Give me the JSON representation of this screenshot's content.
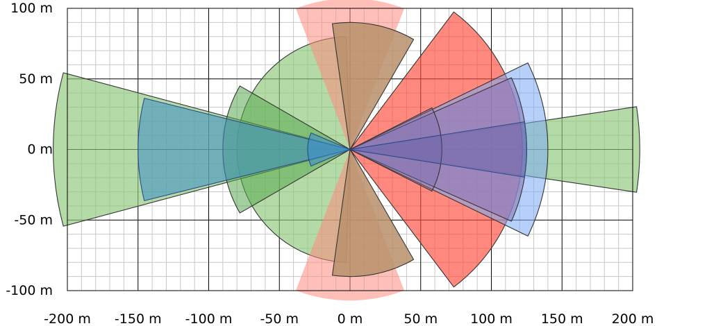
{
  "chart_data": {
    "type": "sector_coverage",
    "title": "",
    "xlabel": "",
    "ylabel": "",
    "unit": "m",
    "xlim": [
      -200,
      200
    ],
    "ylim": [
      -100,
      100
    ],
    "x_ticks": [
      -200,
      -150,
      -100,
      -50,
      0,
      50,
      100,
      150,
      200
    ],
    "y_ticks": [
      -100,
      -50,
      0,
      50,
      100
    ],
    "x_tick_labels": [
      "-200 m",
      "-150 m",
      "-100 m",
      "-50 m",
      "0 m",
      "50 m",
      "100 m",
      "150 m",
      "200 m"
    ],
    "y_tick_labels": [
      "-100 m",
      "-50 m",
      "0 m",
      "50 m",
      "100 m"
    ],
    "major_grid_step": 50,
    "minor_grid_step": 10,
    "grid": true,
    "legend": "none",
    "sectors": [
      {
        "group": "green",
        "range": 80,
        "start_deg": 92,
        "end_deg": 268,
        "fill": "#8cc878",
        "fill_opacity": 0.65,
        "stroke": "#333333"
      },
      {
        "group": "green",
        "range": 210,
        "start_deg": 165,
        "end_deg": 195,
        "fill": "#8cc878",
        "fill_opacity": 0.65,
        "stroke": "#333333"
      },
      {
        "group": "green",
        "range": 90,
        "start_deg": 150,
        "end_deg": 210,
        "fill": "#5aaa50",
        "fill_opacity": 0.55,
        "stroke": "#333333"
      },
      {
        "group": "blue",
        "range": 150,
        "start_deg": 166,
        "end_deg": 194,
        "fill": "#3c8cc8",
        "fill_opacity": 0.55,
        "stroke": "#2a4a88"
      },
      {
        "group": "blue",
        "range": 30,
        "start_deg": 157,
        "end_deg": 203,
        "fill": "#3c8cc8",
        "fill_opacity": 0.6,
        "stroke": "#2a4a88"
      },
      {
        "group": "green",
        "range": 205,
        "start_deg": -8.5,
        "end_deg": 8.5,
        "fill": "#8cc878",
        "fill_opacity": 0.65,
        "stroke": "#333333"
      },
      {
        "group": "red",
        "range": 122,
        "start_deg": -53,
        "end_deg": 53,
        "fill": "#ff4a3a",
        "fill_opacity": 0.65,
        "stroke": "#333333"
      },
      {
        "group": "red",
        "range": 107,
        "start_deg": 69,
        "end_deg": 111,
        "fill": "#ff8a80",
        "fill_opacity": 0.55,
        "stroke": "none"
      },
      {
        "group": "red",
        "range": 107,
        "start_deg": -111,
        "end_deg": -69,
        "fill": "#ff8a80",
        "fill_opacity": 0.55,
        "stroke": "none"
      },
      {
        "group": "brown",
        "range": 90,
        "start_deg": 60,
        "end_deg": 98,
        "fill": "#b8906a",
        "fill_opacity": 0.85,
        "stroke": "#333333"
      },
      {
        "group": "brown",
        "range": 90,
        "start_deg": -98,
        "end_deg": -60,
        "fill": "#b8906a",
        "fill_opacity": 0.85,
        "stroke": "#333333"
      },
      {
        "group": "blue",
        "range": 140,
        "start_deg": -26,
        "end_deg": 26,
        "fill": "#7aaaf5",
        "fill_opacity": 0.55,
        "stroke": "#333333"
      },
      {
        "group": "purple",
        "range": 125,
        "start_deg": -24,
        "end_deg": 24,
        "fill": "#8a78b8",
        "fill_opacity": 0.6,
        "stroke": "#333333"
      },
      {
        "group": "purple",
        "range": 65,
        "start_deg": -27,
        "end_deg": 27,
        "fill": "#7a6aa8",
        "fill_opacity": 0.35,
        "stroke": "#333333"
      },
      {
        "group": "blue",
        "range": 125,
        "start_deg": -9,
        "end_deg": 9,
        "fill": "#5a5aa8",
        "fill_opacity": 0.35,
        "stroke": "#2a4a88"
      }
    ]
  }
}
